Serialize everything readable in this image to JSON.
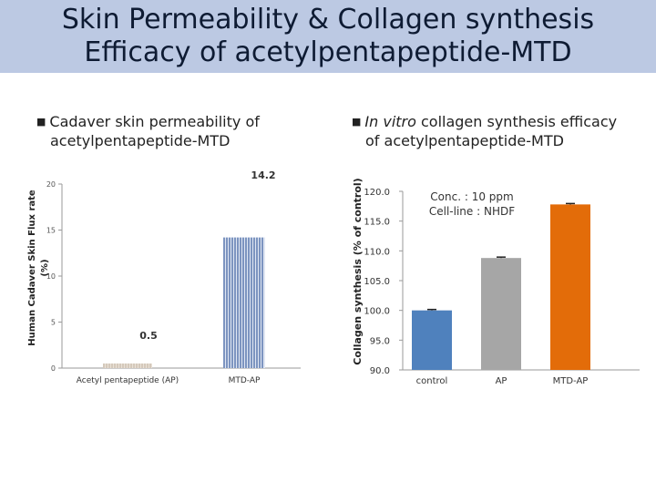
{
  "slide": {
    "title_line1": "Skin Permeability & Collagen synthesis",
    "title_line2": "Efficacy of acetylpentapeptide-MTD",
    "left_bullet": {
      "line1": "Cadaver skin permeability of",
      "line2": "acetylpentapeptide-MTD"
    },
    "right_bullet": {
      "line1_italic": "In vitro",
      "line1_rest": " collagen synthesis efficacy",
      "line2": "of acetylpentapeptide-MTD"
    }
  },
  "chart_data": [
    {
      "type": "bar",
      "ylabel": "Human Cadaver Skin Flux rate (%)",
      "categories": [
        "Acetyl pentapeptide (AP)",
        "MTD-AP"
      ],
      "values": [
        0.5,
        14.2
      ],
      "data_labels": [
        "0.5",
        "14.2"
      ],
      "ylim": [
        0,
        20
      ],
      "yticks": [
        "0",
        "5",
        "10",
        "15",
        "20"
      ],
      "bar_colors": [
        "#c8b9a8",
        "#3c5fa0"
      ],
      "grid": false,
      "legend": "none"
    },
    {
      "type": "bar",
      "ylabel": "Collagen synthesis (% of control)",
      "categories": [
        "control",
        "AP",
        "MTD-AP"
      ],
      "values": [
        100.0,
        108.8,
        117.8
      ],
      "ylim": [
        90,
        120
      ],
      "yticks": [
        "90.0",
        "95.0",
        "100.0",
        "105.0",
        "110.0",
        "115.0",
        "120.0"
      ],
      "bar_colors": [
        "#4f81bd",
        "#a6a6a6",
        "#e36c09"
      ],
      "error_bars": true,
      "annotation": [
        "Conc. : 10 ppm",
        "Cell-line : NHDF"
      ],
      "grid": false,
      "legend": "none"
    }
  ]
}
